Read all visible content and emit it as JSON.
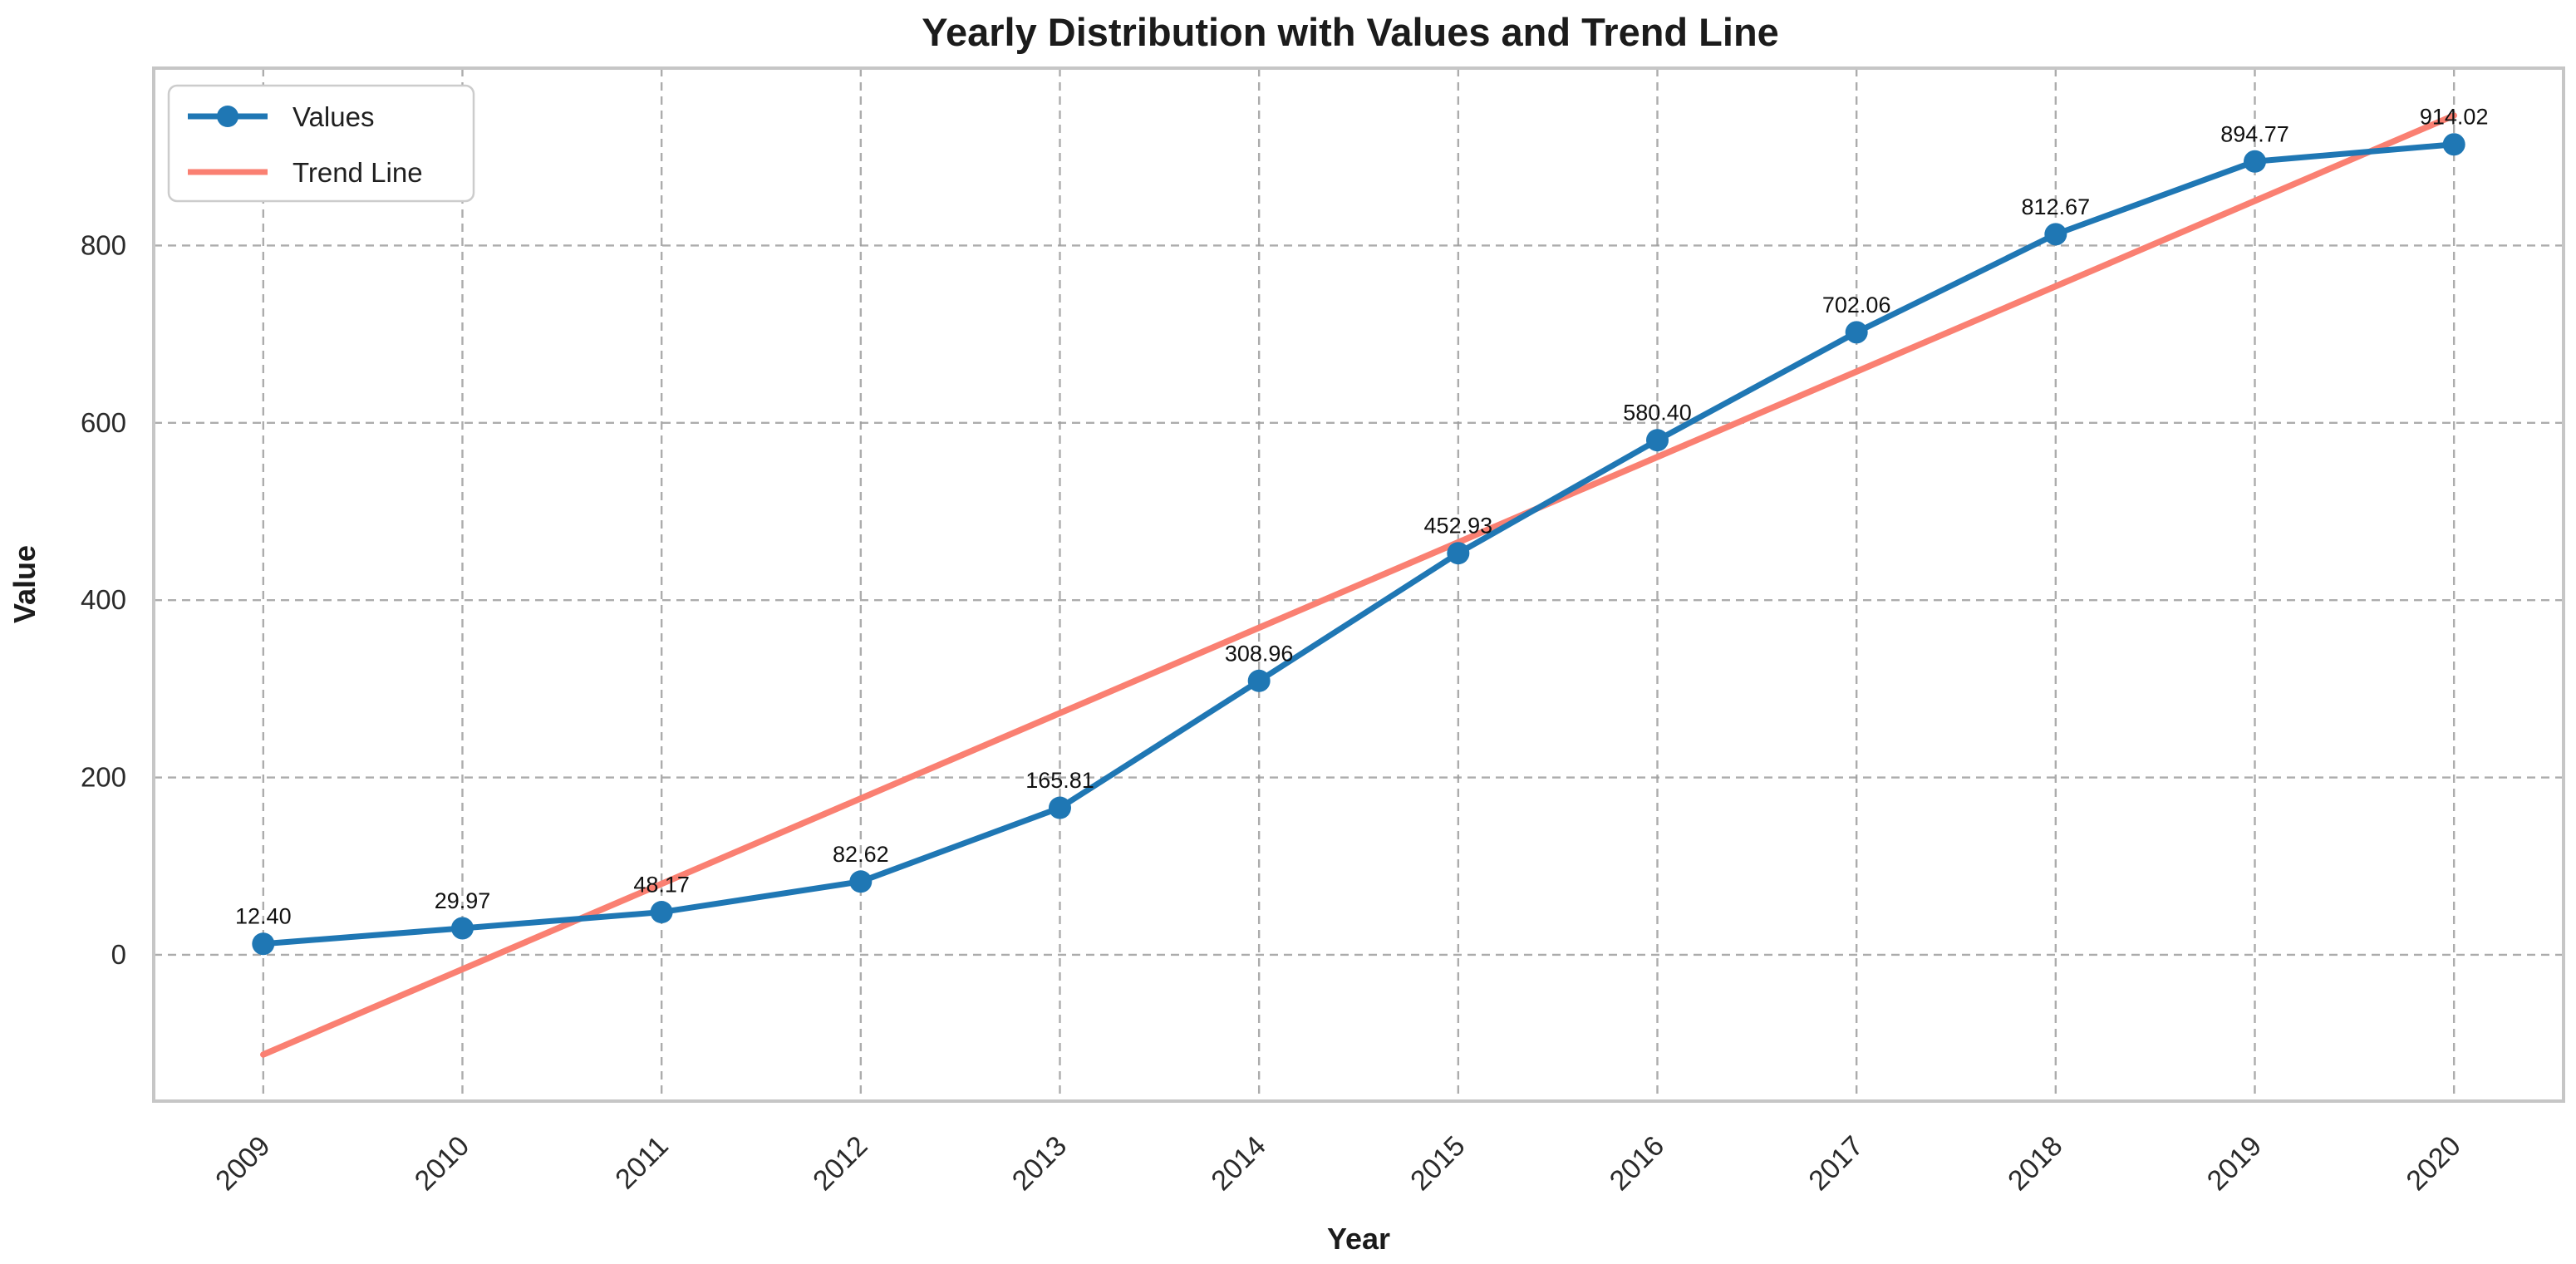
{
  "chart_data": {
    "type": "line",
    "title": "Yearly Distribution with Values and Trend Line",
    "xlabel": "Year",
    "ylabel": "Value",
    "categories": [
      "2009",
      "2010",
      "2011",
      "2012",
      "2013",
      "2014",
      "2015",
      "2016",
      "2017",
      "2018",
      "2019",
      "2020"
    ],
    "series": [
      {
        "name": "Values",
        "color": "#1f77b4",
        "marker": "circle",
        "values": [
          12.4,
          29.97,
          48.17,
          82.62,
          165.81,
          308.96,
          452.93,
          580.4,
          702.06,
          812.67,
          894.77,
          914.02
        ],
        "point_labels": [
          "12.40",
          "29.97",
          "48.17",
          "82.62",
          "165.81",
          "308.96",
          "452.93",
          "580.40",
          "702.06",
          "812.67",
          "894.77",
          "914.02"
        ]
      },
      {
        "name": "Trend Line",
        "color": "#fa8072",
        "trend": true,
        "y_start": -112.5,
        "y_end": 946.6
      }
    ],
    "yticks": [
      0,
      200,
      400,
      600,
      800
    ],
    "ylim": [
      -165,
      1000
    ],
    "x_margin": 0.55,
    "grid": true,
    "grid_style": "dashed",
    "legend_position": "upper-left"
  },
  "colors": {
    "values_line": "#1f77b4",
    "trend_line": "#fa8072",
    "grid": "#9e9e9e",
    "spine": "#c6c6c6",
    "text": "#1b1b1b"
  }
}
